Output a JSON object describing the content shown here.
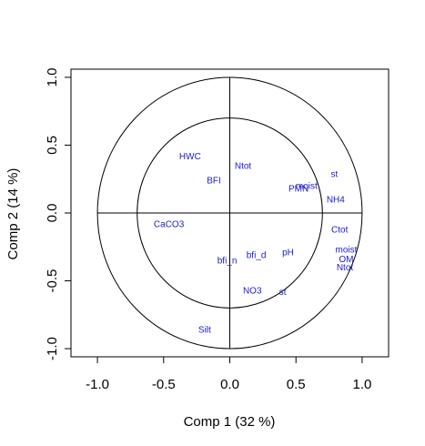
{
  "chart_data": {
    "type": "scatter",
    "title": "",
    "xlabel": "Comp 1 (32 %)",
    "ylabel": "Comp 2 (14 %)",
    "xlim": [
      -1.2,
      1.2
    ],
    "ylim": [
      -1.06,
      1.06
    ],
    "xticks": [
      -1.0,
      -0.5,
      0.0,
      0.5,
      1.0
    ],
    "xtick_labels": [
      "-1.0",
      "-0.5",
      "0.0",
      "0.5",
      "1.0"
    ],
    "yticks": [
      -1.0,
      -0.5,
      0.0,
      0.5,
      1.0
    ],
    "ytick_labels": [
      "-1.0",
      "-0.5",
      "0.0",
      "0.5",
      "1.0"
    ],
    "circles": [
      1.0,
      0.7
    ],
    "reference_lines": {
      "x": 0,
      "y": 0
    },
    "grid": false,
    "label_color": "#1a1ad6",
    "points": [
      {
        "label": "HWC",
        "x": -0.3,
        "y": 0.42
      },
      {
        "label": "Ntot",
        "x": 0.1,
        "y": 0.35
      },
      {
        "label": "BFI",
        "x": -0.12,
        "y": 0.24
      },
      {
        "label": "st",
        "x": 0.79,
        "y": 0.29
      },
      {
        "label": "PMN",
        "x": 0.52,
        "y": 0.18
      },
      {
        "label": "moist",
        "x": 0.58,
        "y": 0.2
      },
      {
        "label": "NH4",
        "x": 0.8,
        "y": 0.1
      },
      {
        "label": "CaCO3",
        "x": -0.46,
        "y": -0.08
      },
      {
        "label": "Ctot",
        "x": 0.83,
        "y": -0.12
      },
      {
        "label": "moist",
        "x": 0.88,
        "y": -0.27
      },
      {
        "label": "OM",
        "x": 0.88,
        "y": -0.34
      },
      {
        "label": "Ntot",
        "x": 0.87,
        "y": -0.4
      },
      {
        "label": "pH",
        "x": 0.44,
        "y": -0.29
      },
      {
        "label": "bfi_d",
        "x": 0.2,
        "y": -0.31
      },
      {
        "label": "bfi_n",
        "x": -0.02,
        "y": -0.35
      },
      {
        "label": "NO3",
        "x": 0.17,
        "y": -0.57
      },
      {
        "label": "st",
        "x": 0.4,
        "y": -0.58
      },
      {
        "label": "Silt",
        "x": -0.19,
        "y": -0.86
      }
    ]
  }
}
